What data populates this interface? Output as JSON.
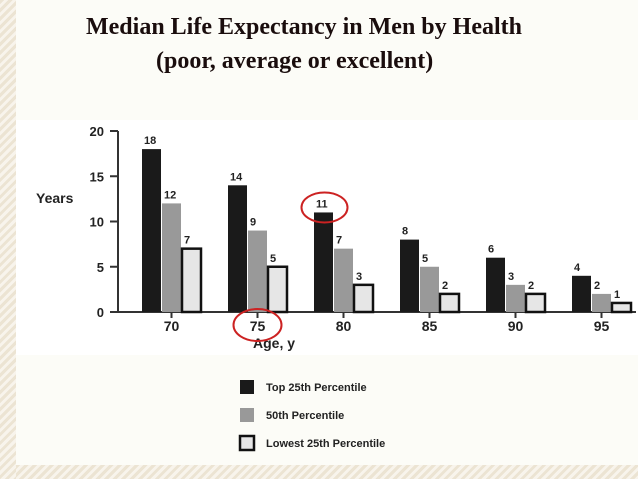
{
  "title_line1": "Median Life Expectancy in Men by Health",
  "title_line2": "(poor, average or excellent)",
  "chart_data": {
    "type": "bar",
    "categories": [
      "70",
      "75",
      "80",
      "85",
      "90",
      "95"
    ],
    "series": [
      {
        "name": "Top 25th Percentile",
        "values": [
          18,
          14,
          11,
          8,
          6,
          4
        ],
        "color": "#1a1a1a"
      },
      {
        "name": "50th Percentile",
        "values": [
          12,
          9,
          7,
          5,
          3,
          2
        ],
        "color": "#999999"
      },
      {
        "name": "Lowest 25th Percentile",
        "values": [
          7,
          5,
          3,
          2,
          2,
          1
        ],
        "color": "#e6e6e6"
      }
    ],
    "xlabel": "Age, y",
    "ylabel": "Years",
    "ylim": [
      0,
      20
    ],
    "yticks": [
      "0",
      "5",
      "10",
      "15",
      "20"
    ],
    "legend_position": "bottom",
    "highlighted": [
      {
        "category": "80",
        "series": "Top 25th Percentile"
      },
      {
        "category": "75",
        "series": "x-tick"
      }
    ],
    "highlight_color": "#cc2222"
  }
}
